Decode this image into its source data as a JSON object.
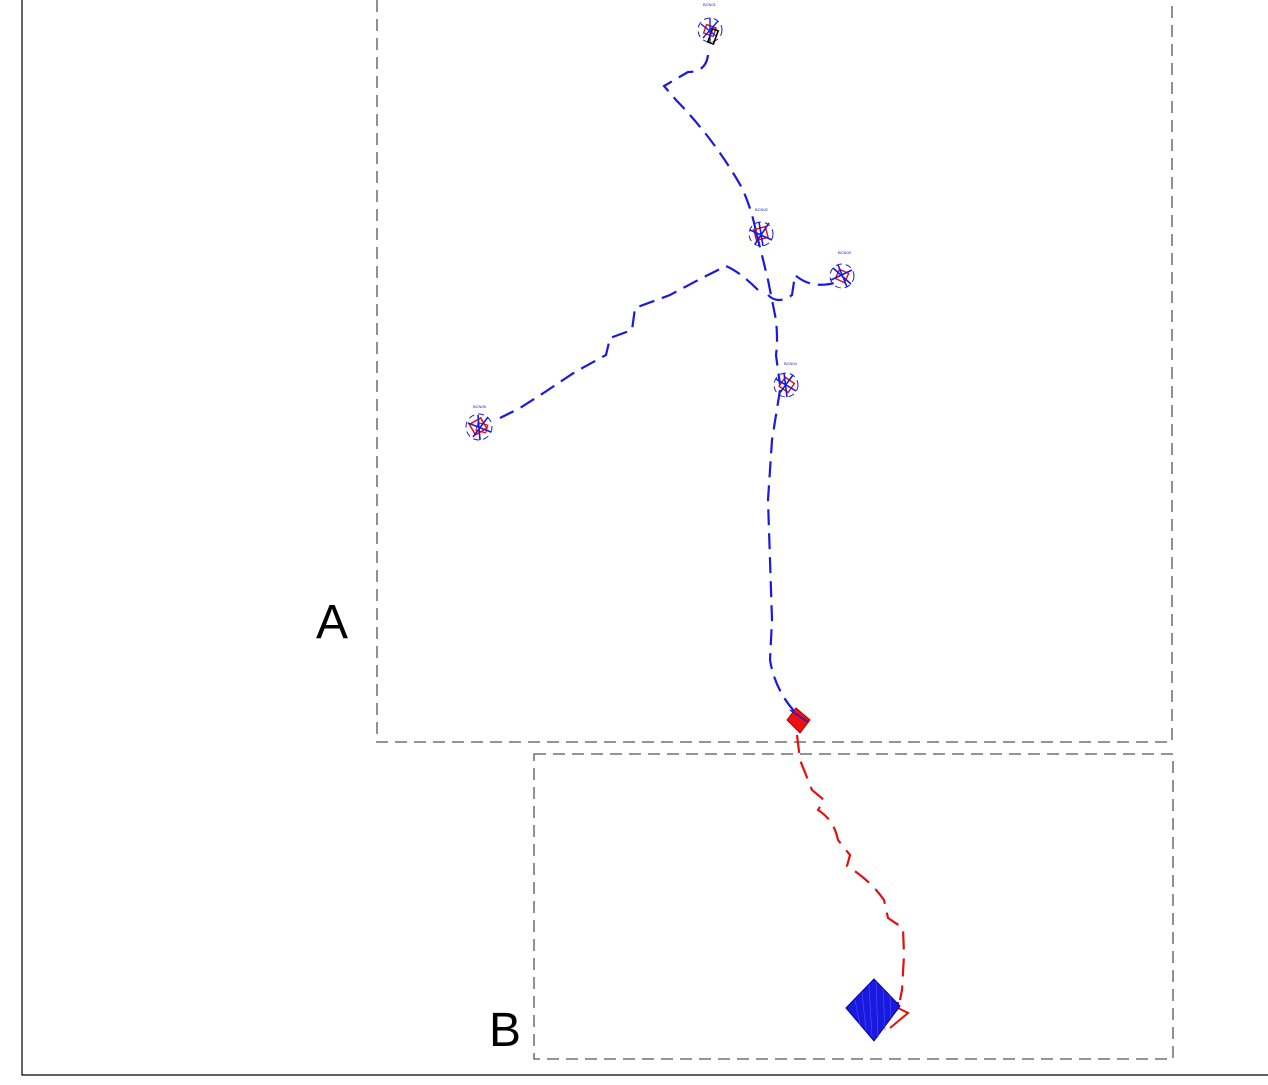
{
  "zones": [
    {
      "id": "A",
      "label": "A"
    },
    {
      "id": "B",
      "label": "B"
    }
  ],
  "nodes": [
    {
      "id": "n1",
      "label": "BCN01"
    },
    {
      "id": "n2",
      "label": "BCN02"
    },
    {
      "id": "n3",
      "label": "BCN03"
    },
    {
      "id": "n4",
      "label": "BCN04"
    },
    {
      "id": "n5",
      "label": "BCN05"
    }
  ],
  "colors": {
    "network_primary": "#1a1adf",
    "network_secondary": "#e01010",
    "zone_border": "#555555",
    "frame": "#000000"
  }
}
